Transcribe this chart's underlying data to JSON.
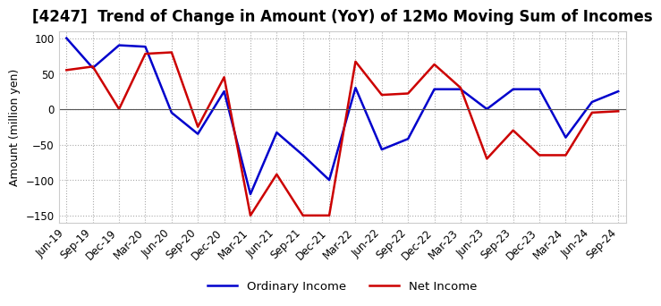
{
  "title": "[4247]  Trend of Change in Amount (YoY) of 12Mo Moving Sum of Incomes",
  "ylabel": "Amount (million yen)",
  "ylim": [
    -160,
    110
  ],
  "yticks": [
    -150,
    -100,
    -50,
    0,
    50,
    100
  ],
  "x_labels": [
    "Jun-19",
    "Sep-19",
    "Dec-19",
    "Mar-20",
    "Jun-20",
    "Sep-20",
    "Dec-20",
    "Mar-21",
    "Jun-21",
    "Sep-21",
    "Dec-21",
    "Mar-22",
    "Jun-22",
    "Sep-22",
    "Dec-22",
    "Mar-23",
    "Jun-23",
    "Sep-23",
    "Dec-23",
    "Mar-24",
    "Jun-24",
    "Sep-24"
  ],
  "ordinary_income": [
    100,
    58,
    90,
    88,
    -5,
    -35,
    25,
    -120,
    -33,
    -65,
    -100,
    30,
    -57,
    -42,
    28,
    28,
    0,
    28,
    28,
    -40,
    10,
    25
  ],
  "net_income": [
    55,
    60,
    0,
    78,
    80,
    -25,
    45,
    -150,
    -92,
    -150,
    -150,
    67,
    20,
    22,
    63,
    30,
    -70,
    -30,
    -65,
    -65,
    -5,
    -3
  ],
  "ordinary_color": "#0000cc",
  "net_color": "#cc0000",
  "grid_color": "#aaaaaa",
  "bg_color": "#ffffff",
  "title_fontsize": 12,
  "label_fontsize": 9,
  "tick_fontsize": 8.5,
  "legend_fontsize": 9.5
}
